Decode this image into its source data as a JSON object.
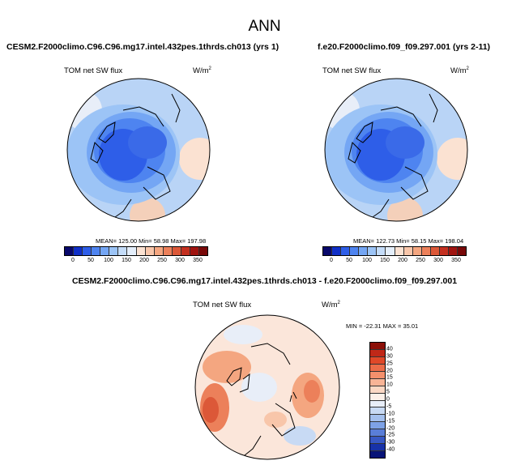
{
  "title": "ANN",
  "panels": [
    {
      "case": "CESM2.F2000climo.C96.C96.mg17.intel.432pes.1thrds.ch013 (yrs 1)",
      "var": "TOM net SW flux",
      "unit": "W/m",
      "unit_sup": "2",
      "stats": "MEAN= 125.00  Min= 58.98  Max= 197.98"
    },
    {
      "case": "f.e20.F2000climo.f09_f09.297.001 (yrs 2-11)",
      "var": "TOM net SW flux",
      "unit": "W/m",
      "unit_sup": "2",
      "stats": "MEAN= 122.73  Min= 58.15  Max= 198.04"
    }
  ],
  "diff": {
    "case": "CESM2.F2000climo.C96.C96.mg17.intel.432pes.1thrds.ch013 - f.e20.F2000climo.f09_f09.297.001",
    "var": "TOM net SW flux",
    "unit": "W/m",
    "unit_sup": "2",
    "stats": "MIN = -22.31 MAX = 35.01"
  },
  "colorbar_abs": {
    "labels": [
      "0",
      "50",
      "100",
      "150",
      "200",
      "250",
      "300",
      "350"
    ],
    "colors": [
      "#08086b",
      "#1030c8",
      "#2e5ee8",
      "#4e84f0",
      "#74a6f4",
      "#9cc4f6",
      "#c4dcf8",
      "#e4eefa",
      "#fbe2d2",
      "#f8c6aa",
      "#f4a680",
      "#ec805a",
      "#dc5838",
      "#c43020",
      "#a01410",
      "#780808"
    ]
  },
  "colorbar_diff": {
    "labels": [
      "40",
      "30",
      "25",
      "20",
      "15",
      "10",
      "5",
      "0",
      "-5",
      "-10",
      "-15",
      "-20",
      "-25",
      "-30",
      "-40"
    ],
    "colors": [
      "#8c1008",
      "#c02818",
      "#e04828",
      "#ec6c48",
      "#f4906c",
      "#f8b496",
      "#fbd8c4",
      "#fdf0e8",
      "#e8eef8",
      "#c8daf4",
      "#a4c0ee",
      "#7ea2e6",
      "#5a7ed8",
      "#3858c4",
      "#1832a8",
      "#081478"
    ]
  }
}
